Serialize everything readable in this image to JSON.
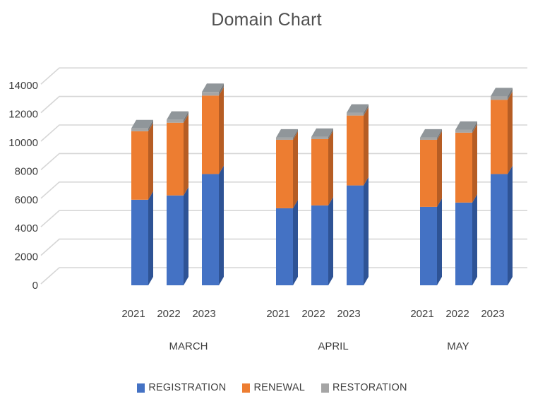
{
  "title": "Domain Chart",
  "chart_data": {
    "type": "bar",
    "variant": "3d-stacked-column",
    "title": "Domain Chart",
    "groups": [
      "MARCH",
      "APRIL",
      "MAY"
    ],
    "years": [
      "2021",
      "2022",
      "2023"
    ],
    "series": [
      {
        "name": "REGISTRATION",
        "color": "#4472C4",
        "side_color": "#2E5395",
        "top_color": "#6E92D2",
        "values": [
          [
            6000,
            6300,
            7800
          ],
          [
            5400,
            5600,
            7000
          ],
          [
            5500,
            5800,
            7800
          ]
        ]
      },
      {
        "name": "RENEWAL",
        "color": "#ED7D31",
        "side_color": "#B65D24",
        "top_color": "#F09B5F",
        "values": [
          [
            4800,
            5100,
            5500
          ],
          [
            4800,
            4650,
            4900
          ],
          [
            4700,
            4900,
            5200
          ]
        ]
      },
      {
        "name": "RESTORATION",
        "color": "#A5A5A5",
        "side_color": "#787878",
        "top_color": "#90969A",
        "values": [
          [
            200,
            200,
            250
          ],
          [
            150,
            150,
            200
          ],
          [
            150,
            200,
            250
          ]
        ]
      }
    ],
    "y_axis": {
      "min": 0,
      "max": 14000,
      "step": 2000,
      "tick_labels": [
        "0",
        "2000",
        "4000",
        "6000",
        "8000",
        "10000",
        "12000",
        "14000"
      ]
    },
    "legend_position": "bottom",
    "gridlines": true
  },
  "colors": {
    "grid": "#D6D6D6",
    "axis_text": "#404040",
    "title_text": "#4F4F4F",
    "background": "#FFFFFF"
  }
}
